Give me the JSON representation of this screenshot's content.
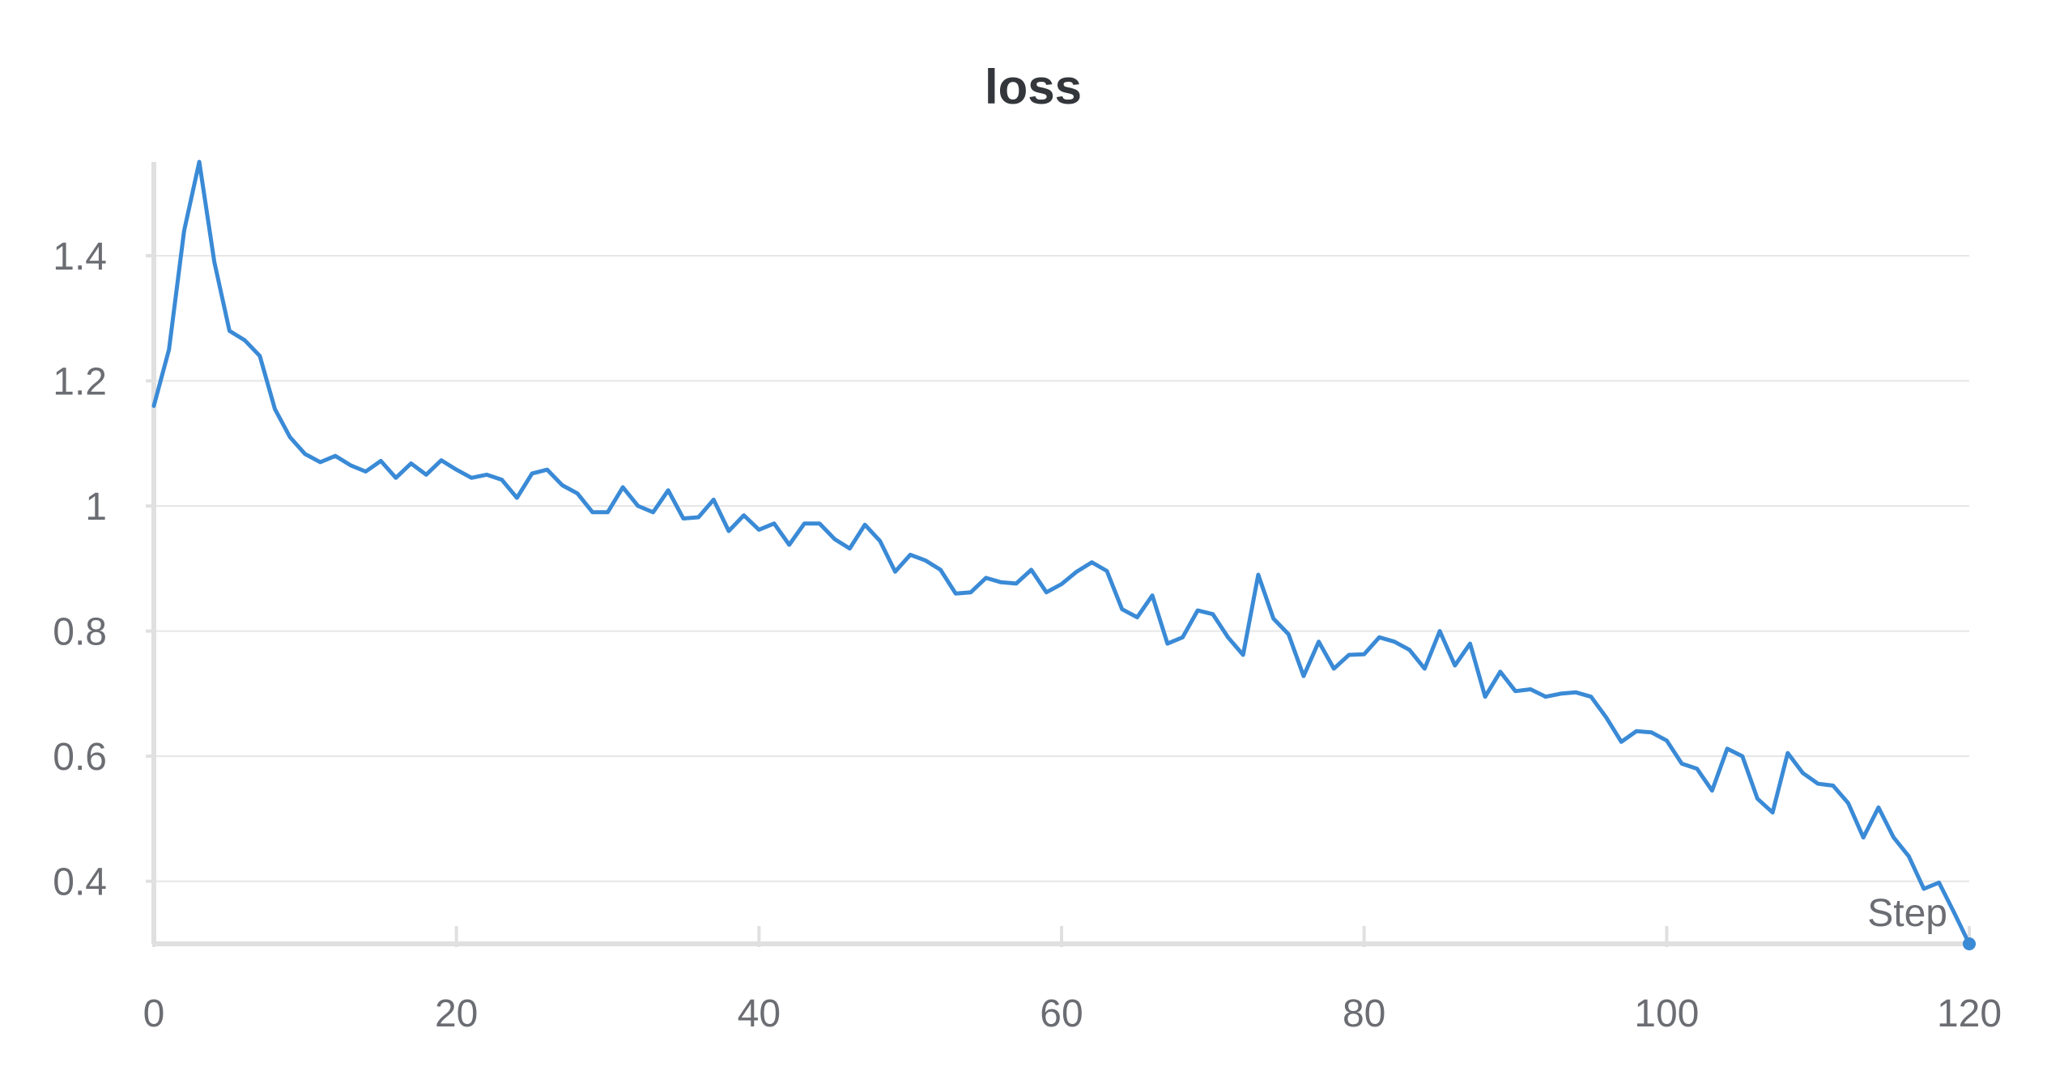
{
  "chart_data": {
    "type": "line",
    "title": "loss",
    "xlabel": "Step",
    "ylabel": "",
    "xlim": [
      0,
      120
    ],
    "ylim": [
      0.3,
      1.55
    ],
    "grid": true,
    "x_ticks": [
      0,
      20,
      40,
      60,
      80,
      100,
      120
    ],
    "x_tick_labels": [
      "0",
      "20",
      "40",
      "60",
      "80",
      "100",
      "120"
    ],
    "y_ticks": [
      0.4,
      0.6,
      0.8,
      1.0,
      1.2,
      1.4
    ],
    "y_tick_labels": [
      "0.4",
      "0.6",
      "0.8",
      "1",
      "1.2",
      "1.4"
    ],
    "colors": {
      "series": "#3a8ad6",
      "grid": "#e6e6e6",
      "axis": "#e0e0e0",
      "text": "#6b6d73",
      "title": "#33363b"
    },
    "series": [
      {
        "x": [
          0,
          1,
          2,
          3,
          4,
          5,
          6,
          7,
          8,
          9,
          10,
          11,
          12,
          13,
          14,
          15,
          16,
          17,
          18,
          19,
          20,
          21,
          22,
          23,
          24,
          25,
          26,
          27,
          28,
          29,
          30,
          31,
          32,
          33,
          34,
          35,
          36,
          37,
          38,
          39,
          40,
          41,
          42,
          43,
          44,
          45,
          46,
          47,
          48,
          49,
          50,
          51,
          52,
          53,
          54,
          55,
          56,
          57,
          58,
          59,
          60,
          61,
          62,
          63,
          64,
          65,
          66,
          67,
          68,
          69,
          70,
          71,
          72,
          73,
          74,
          75,
          76,
          77,
          78,
          79,
          80,
          81,
          82,
          83,
          84,
          85,
          86,
          87,
          88,
          89,
          90,
          91,
          92,
          93,
          94,
          95,
          96,
          97,
          98,
          99,
          100,
          101,
          102,
          103,
          104,
          105,
          106,
          107,
          108,
          109,
          110,
          111,
          112,
          113,
          114,
          115,
          116,
          117,
          118,
          119,
          120
        ],
        "values": [
          1.16,
          1.25,
          1.44,
          1.55,
          1.39,
          1.28,
          1.265,
          1.24,
          1.155,
          1.11,
          1.083,
          1.07,
          1.08,
          1.065,
          1.055,
          1.072,
          1.045,
          1.068,
          1.05,
          1.073,
          1.058,
          1.045,
          1.05,
          1.042,
          1.013,
          1.052,
          1.058,
          1.033,
          1.02,
          0.99,
          0.99,
          1.03,
          1.0,
          0.99,
          1.025,
          0.98,
          0.982,
          1.01,
          0.96,
          0.985,
          0.962,
          0.972,
          0.938,
          0.972,
          0.972,
          0.947,
          0.932,
          0.97,
          0.944,
          0.895,
          0.922,
          0.913,
          0.898,
          0.86,
          0.862,
          0.885,
          0.878,
          0.876,
          0.898,
          0.862,
          0.875,
          0.895,
          0.91,
          0.896,
          0.835,
          0.822,
          0.857,
          0.78,
          0.79,
          0.833,
          0.827,
          0.79,
          0.762,
          0.89,
          0.82,
          0.795,
          0.728,
          0.783,
          0.74,
          0.762,
          0.763,
          0.79,
          0.783,
          0.77,
          0.74,
          0.8,
          0.745,
          0.78,
          0.695,
          0.735,
          0.704,
          0.707,
          0.695,
          0.7,
          0.702,
          0.695,
          0.662,
          0.623,
          0.64,
          0.638,
          0.625,
          0.588,
          0.58,
          0.545,
          0.612,
          0.6,
          0.532,
          0.51,
          0.605,
          0.573,
          0.556,
          0.553,
          0.525,
          0.47,
          0.518,
          0.47,
          0.44,
          0.388,
          0.398,
          0.35,
          0.3
        ]
      }
    ]
  }
}
